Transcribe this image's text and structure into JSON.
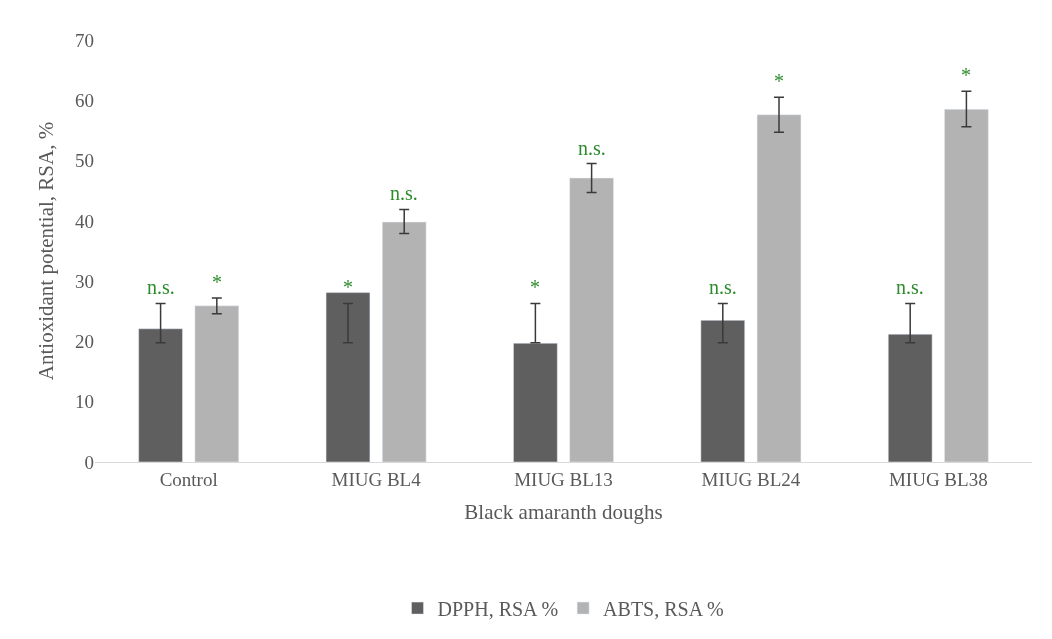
{
  "chart_data": {
    "type": "bar",
    "xlabel": "Black amaranth doughs",
    "ylabel": "Antioxidant potential, RSA, %",
    "categories": [
      "Control",
      "MIUG BL4",
      "MIUG BL13",
      "MIUG BL24",
      "MIUG BL38"
    ],
    "series": [
      {
        "name": "DPPH, RSA %",
        "color": "#5f5f5f",
        "values": [
          22.1,
          28.1,
          19.7,
          23.5,
          21.2
        ],
        "errors": [
          [
            19.8,
            26.3
          ],
          [
            19.8,
            26.3
          ],
          [
            19.8,
            26.3
          ],
          [
            19.8,
            26.3
          ],
          [
            19.8,
            26.3
          ]
        ],
        "value_labels": [
          "n.s.",
          "*",
          "*",
          "n.s.",
          "n.s."
        ]
      },
      {
        "name": "ABTS, RSA %",
        "color": "#b3b3b3",
        "values": [
          25.9,
          39.8,
          47.1,
          57.6,
          58.5
        ],
        "errors": [
          [
            24.6,
            27.2
          ],
          [
            37.9,
            41.9
          ],
          [
            44.7,
            49.5
          ],
          [
            54.7,
            60.5
          ],
          [
            55.6,
            61.5
          ]
        ],
        "value_labels": [
          "*",
          "n.s.",
          "n.s.",
          "*",
          "*"
        ]
      }
    ],
    "ylim": [
      0,
      70
    ],
    "yticks": [
      0,
      10,
      20,
      30,
      40,
      50,
      60,
      70
    ],
    "grid": false,
    "legend": "bottom"
  }
}
